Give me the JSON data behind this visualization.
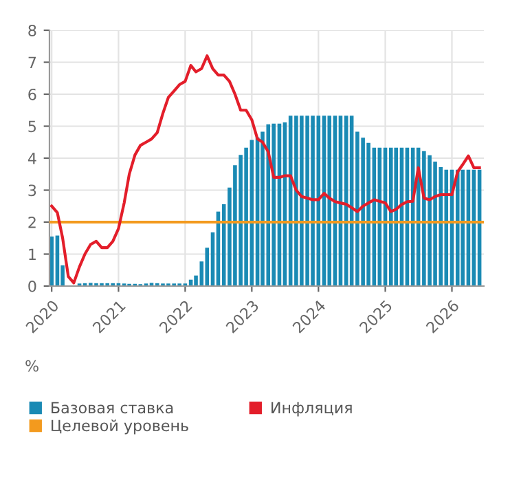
{
  "chart_data": {
    "type": "bar",
    "x": [
      "2020-01",
      "2020-02",
      "2020-03",
      "2020-04",
      "2020-05",
      "2020-06",
      "2020-07",
      "2020-08",
      "2020-09",
      "2020-10",
      "2020-11",
      "2020-12",
      "2021-01",
      "2021-02",
      "2021-03",
      "2021-04",
      "2021-05",
      "2021-06",
      "2021-07",
      "2021-08",
      "2021-09",
      "2021-10",
      "2021-11",
      "2021-12",
      "2022-01",
      "2022-02",
      "2022-03",
      "2022-04",
      "2022-05",
      "2022-06",
      "2022-07",
      "2022-08",
      "2022-09",
      "2022-10",
      "2022-11",
      "2022-12",
      "2023-01",
      "2023-02",
      "2023-03",
      "2023-04",
      "2023-05",
      "2023-06",
      "2023-07",
      "2023-08",
      "2023-09",
      "2023-10",
      "2023-11",
      "2023-12",
      "2024-01",
      "2024-02",
      "2024-03",
      "2024-04",
      "2024-05",
      "2024-06",
      "2024-07",
      "2024-08",
      "2024-09",
      "2024-10",
      "2024-11",
      "2024-12",
      "2025-01",
      "2025-02",
      "2025-03",
      "2025-04",
      "2025-05",
      "2025-06",
      "2025-07",
      "2025-08",
      "2025-09",
      "2025-10",
      "2025-11",
      "2025-12",
      "2026-01",
      "2026-02",
      "2026-03",
      "2026-04",
      "2026-05",
      "2026-06"
    ],
    "series": [
      {
        "name": "Базовая ставка",
        "color": "#1a8ab4",
        "values": [
          1.55,
          1.58,
          0.65,
          null,
          null,
          0.08,
          0.09,
          0.1,
          0.09,
          0.09,
          0.09,
          0.09,
          0.09,
          0.08,
          0.07,
          0.07,
          0.06,
          0.08,
          0.1,
          0.09,
          0.08,
          0.08,
          0.08,
          0.08,
          0.08,
          0.2,
          0.33,
          0.77,
          1.2,
          1.68,
          2.33,
          2.56,
          3.08,
          3.78,
          4.1,
          4.33,
          4.57,
          4.65,
          4.83,
          5.06,
          5.08,
          5.08,
          5.12,
          5.33,
          5.33,
          5.33,
          5.33,
          5.33,
          5.33,
          5.33,
          5.33,
          5.33,
          5.33,
          5.33,
          5.33,
          4.83,
          4.64,
          4.48,
          4.33,
          4.33,
          4.33,
          4.33,
          4.33,
          4.33,
          4.33,
          4.33,
          4.33,
          4.22,
          4.09,
          3.89,
          3.72,
          3.64,
          3.64,
          3.64,
          3.64,
          3.64,
          3.64,
          3.64
        ]
      },
      {
        "name": "Инфляция",
        "type": "line",
        "color": "#e31e2a",
        "values": [
          2.5,
          2.3,
          1.5,
          0.3,
          0.1,
          0.6,
          1.0,
          1.3,
          1.4,
          1.2,
          1.2,
          1.4,
          1.8,
          2.6,
          3.5,
          4.1,
          4.4,
          4.5,
          4.6,
          4.8,
          5.4,
          5.9,
          6.1,
          6.3,
          6.4,
          6.9,
          6.7,
          6.8,
          7.2,
          6.8,
          6.6,
          6.6,
          6.4,
          6.0,
          5.5,
          5.5,
          5.2,
          4.6,
          4.5,
          4.2,
          3.4,
          3.4,
          3.45,
          3.45,
          3.0,
          2.8,
          2.75,
          2.7,
          2.7,
          2.9,
          2.75,
          2.64,
          2.6,
          2.56,
          2.45,
          2.33,
          2.5,
          2.6,
          2.7,
          2.65,
          2.6,
          2.33,
          2.4,
          2.55,
          2.64,
          2.65,
          3.7,
          2.75,
          2.7,
          2.8,
          2.86,
          2.86,
          2.86,
          3.57,
          3.8,
          4.07,
          3.7,
          3.7
        ]
      }
    ],
    "ref_lines": [
      {
        "axis": "y",
        "value": 2,
        "label": "Целевой уровень",
        "color": "#f39a1e"
      }
    ],
    "xlim": [
      "2019-12-20",
      "2026-06-25"
    ],
    "xticks": [
      "2020",
      "2021",
      "2022",
      "2023",
      "2024",
      "2025",
      "2026"
    ],
    "ylim": [
      0,
      8
    ],
    "yticks": [
      0,
      1,
      2,
      3,
      4,
      5,
      6,
      7,
      8
    ],
    "ylabel": "%",
    "grid": true,
    "legend": "bottom"
  }
}
